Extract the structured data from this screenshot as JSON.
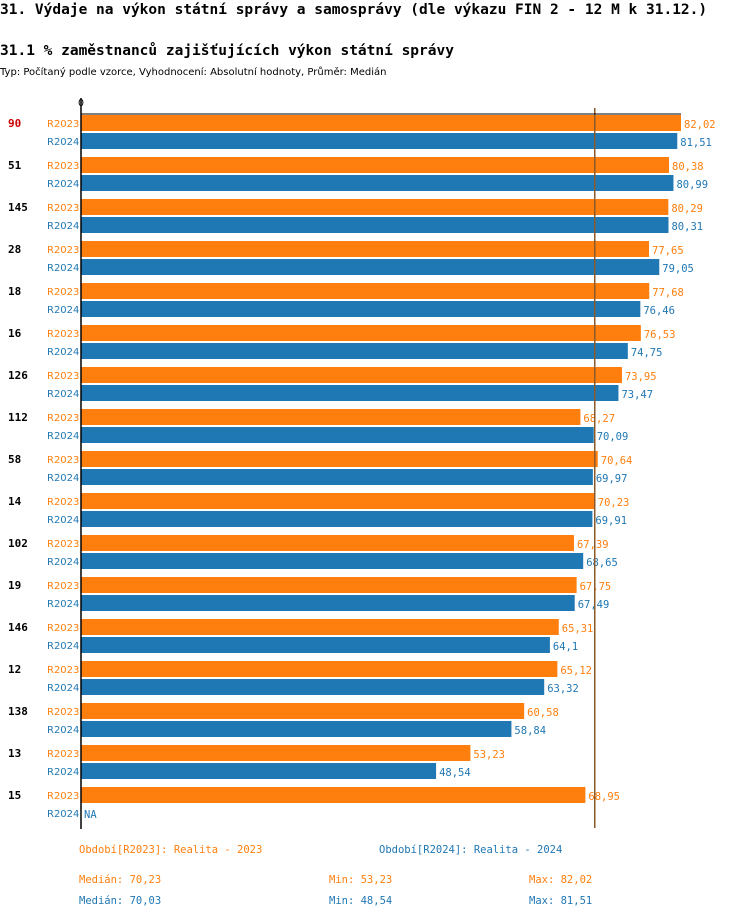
{
  "header": {
    "title": "31. Výdaje na výkon státní správy a samosprávy (dle výkazu FIN 2 - 12 M k 31.12.)",
    "subtitle": "31.1 % zaměstnanců zajišťujících výkon státní správy",
    "type_line": "Typ: Počítaný podle vzorce, Vyhodnocení: Absolutní hodnoty, Průměr: Medián"
  },
  "colors": {
    "r2023": "#ff7f0e",
    "r2024": "#1f77b4",
    "highlight": "#cc0000",
    "median_line": "#8b5a2b"
  },
  "chart_data": {
    "type": "bar",
    "orientation": "horizontal",
    "axis_zero_label": "0",
    "xlim": [
      0,
      82.02
    ],
    "median_reference": 70.23,
    "highlighted_category": "90",
    "categories": [
      "90",
      "51",
      "145",
      "28",
      "18",
      "16",
      "126",
      "112",
      "58",
      "14",
      "102",
      "19",
      "146",
      "12",
      "138",
      "13",
      "15"
    ],
    "series": [
      {
        "name": "R2023",
        "values": [
          82.02,
          80.38,
          80.29,
          77.65,
          77.68,
          76.53,
          73.95,
          68.27,
          70.64,
          70.23,
          67.39,
          67.75,
          65.31,
          65.12,
          60.58,
          53.23,
          68.95
        ],
        "labels": [
          "82,02",
          "80,38",
          "80,29",
          "77,65",
          "77,68",
          "76,53",
          "73,95",
          "68,27",
          "70,64",
          "70,23",
          "67,39",
          "67,75",
          "65,31",
          "65,12",
          "60,58",
          "53,23",
          "68,95"
        ]
      },
      {
        "name": "R2024",
        "values": [
          81.51,
          80.99,
          80.31,
          79.05,
          76.46,
          74.75,
          73.47,
          70.09,
          69.97,
          69.91,
          68.65,
          67.49,
          64.1,
          63.32,
          58.84,
          48.54,
          null
        ],
        "labels": [
          "81,51",
          "80,99",
          "80,31",
          "79,05",
          "76,46",
          "74,75",
          "73,47",
          "70,09",
          "69,97",
          "69,91",
          "68,65",
          "67,49",
          "64,1",
          "63,32",
          "58,84",
          "48,54",
          "NA"
        ]
      }
    ]
  },
  "legend": {
    "r2023": "Období[R2023]: Realita - 2023",
    "r2024": "Období[R2024]: Realita - 2024"
  },
  "stats": {
    "r2023": {
      "median": "Medián: 70,23",
      "min": "Min: 53,23",
      "max": "Max: 82,02"
    },
    "r2024": {
      "median": "Medián: 70,03",
      "min": "Min: 48,54",
      "max": "Max: 81,51"
    }
  }
}
